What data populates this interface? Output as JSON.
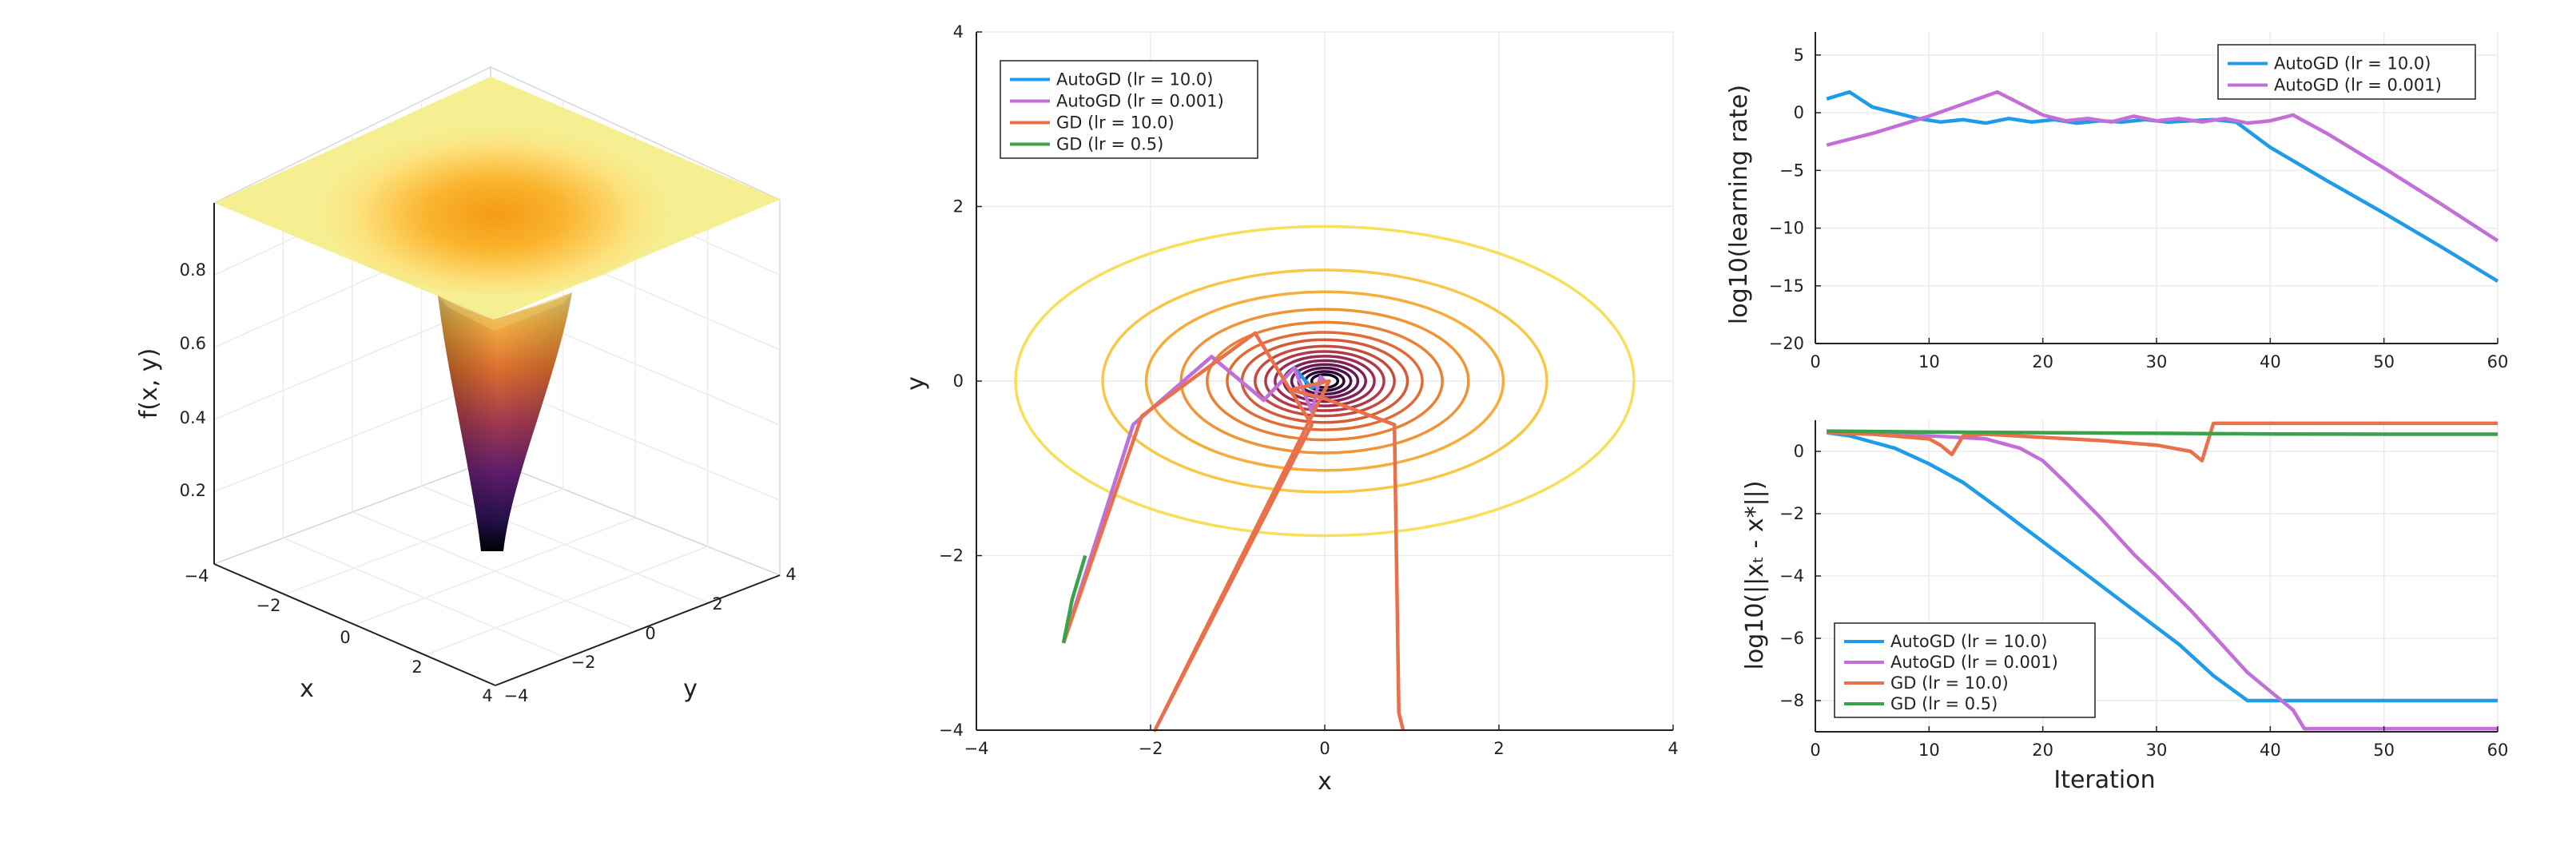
{
  "chart_data": [
    {
      "type": "surface",
      "xlabel": "x",
      "ylabel": "y",
      "zlabel": "f(x, y)",
      "x_ticks": [
        "−4",
        "−2",
        "0",
        "2",
        "4"
      ],
      "y_ticks": [
        "−4",
        "−2",
        "0",
        "2",
        "4"
      ],
      "z_ticks": [
        "0.2",
        "0.4",
        "0.6",
        "0.8"
      ],
      "xlim": [
        -4,
        4
      ],
      "ylim": [
        -4,
        4
      ],
      "zlim": [
        0,
        1
      ],
      "colormap": "inferno",
      "minimum": {
        "x": 0,
        "y": 0,
        "z": 0
      }
    },
    {
      "type": "line",
      "subtype": "contour with optimization trajectories",
      "xlabel": "x",
      "ylabel": "y",
      "xlim": [
        -4,
        4
      ],
      "ylim": [
        -4,
        4
      ],
      "x_ticks": [
        "−4",
        "−2",
        "0",
        "2",
        "4"
      ],
      "y_ticks": [
        "−4",
        "−2",
        "0",
        "2",
        "4"
      ],
      "grid": true,
      "legend_position": "top-left",
      "contour_centre": [
        0,
        0
      ],
      "contour_x_radii": [
        3.55,
        2.55,
        2.05,
        1.65,
        1.35,
        1.12,
        0.95,
        0.8,
        0.68,
        0.57,
        0.47,
        0.38,
        0.3,
        0.22,
        0.15
      ],
      "contour_aspect": 0.5,
      "series": [
        {
          "name": "AutoGD (lr = 10.0)",
          "color": "#1f9be8",
          "x": [
            -3.0,
            -2.2,
            -1.3,
            -0.7,
            -0.35,
            -0.15,
            0.0
          ],
          "y": [
            -3.0,
            -0.5,
            0.28,
            -0.22,
            0.15,
            -0.08,
            0.0
          ]
        },
        {
          "name": "AutoGD (lr = 0.001)",
          "color": "#c46fd8",
          "x": [
            -3.0,
            -2.2,
            -1.3,
            -0.7,
            -0.35,
            -0.15,
            -0.05,
            0.0
          ],
          "y": [
            -3.0,
            -0.5,
            0.28,
            -0.22,
            0.15,
            -0.35,
            0.05,
            0.0
          ]
        },
        {
          "name": "GD (lr = 10.0)",
          "color": "#e8714b",
          "x": [
            -3.0,
            -2.1,
            -0.8,
            -0.15,
            -1.95,
            0.05,
            -0.4,
            0.0,
            0.8,
            0.85,
            0.9
          ],
          "y": [
            -3.0,
            -0.4,
            0.55,
            -0.5,
            -4.0,
            0.0,
            -0.1,
            -0.2,
            -0.5,
            -3.8,
            -4.0
          ]
        },
        {
          "name": "GD (lr = 0.5)",
          "color": "#3aa24a",
          "x": [
            -3.0,
            -2.9,
            -2.75
          ],
          "y": [
            -3.0,
            -2.5,
            -2.0
          ]
        }
      ]
    },
    {
      "type": "line",
      "xlabel": "",
      "ylabel": "log10(learning rate)",
      "xlim": [
        0,
        60
      ],
      "ylim": [
        -20,
        7
      ],
      "x_ticks": [
        "0",
        "10",
        "20",
        "30",
        "40",
        "50",
        "60"
      ],
      "y_ticks": [
        "5",
        "0",
        "−5",
        "−10",
        "−15",
        "−20"
      ],
      "grid": true,
      "legend_position": "top-right",
      "series": [
        {
          "name": "AutoGD (lr = 10.0)",
          "color": "#1f9be8",
          "x": [
            1,
            3,
            5,
            7,
            9,
            11,
            13,
            15,
            17,
            19,
            21,
            23,
            25,
            27,
            29,
            31,
            33,
            35,
            37,
            40,
            45,
            50,
            55,
            60
          ],
          "y": [
            1.2,
            1.8,
            0.5,
            0.0,
            -0.5,
            -0.8,
            -0.6,
            -0.9,
            -0.5,
            -0.8,
            -0.6,
            -0.9,
            -0.7,
            -0.8,
            -0.6,
            -0.8,
            -0.7,
            -0.6,
            -0.8,
            -3.0,
            -5.9,
            -8.7,
            -11.6,
            -14.6
          ]
        },
        {
          "name": "AutoGD (lr = 0.001)",
          "color": "#c46fd8",
          "x": [
            1,
            5,
            10,
            16,
            18,
            20,
            22,
            24,
            26,
            28,
            30,
            32,
            34,
            36,
            38,
            40,
            42,
            45,
            50,
            55,
            60
          ],
          "y": [
            -2.8,
            -1.8,
            -0.3,
            1.8,
            0.8,
            -0.2,
            -0.7,
            -0.5,
            -0.8,
            -0.3,
            -0.7,
            -0.5,
            -0.8,
            -0.5,
            -0.9,
            -0.7,
            -0.2,
            -1.8,
            -4.8,
            -7.9,
            -11.1
          ]
        }
      ]
    },
    {
      "type": "line",
      "xlabel": "Iteration",
      "ylabel": "log10(||xₜ - x*||)",
      "xlim": [
        0,
        60
      ],
      "ylim": [
        -9,
        1
      ],
      "x_ticks": [
        "0",
        "10",
        "20",
        "30",
        "40",
        "50",
        "60"
      ],
      "y_ticks": [
        "0",
        "−2",
        "−4",
        "−6",
        "−8"
      ],
      "grid": true,
      "legend_position": "bottom-left",
      "series": [
        {
          "name": "AutoGD (lr = 10.0)",
          "color": "#1f9be8",
          "x": [
            1,
            3,
            5,
            7,
            10,
            13,
            16,
            20,
            24,
            28,
            32,
            35,
            38,
            40,
            45,
            50,
            55,
            60
          ],
          "y": [
            0.6,
            0.5,
            0.3,
            0.1,
            -0.4,
            -1.0,
            -1.8,
            -2.9,
            -4.0,
            -5.1,
            -6.2,
            -7.2,
            -8.0,
            -8.0,
            -8.0,
            -8.0,
            -8.0,
            -8.0
          ]
        },
        {
          "name": "AutoGD (lr = 0.001)",
          "color": "#c46fd8",
          "x": [
            1,
            5,
            10,
            15,
            18,
            20,
            22,
            25,
            28,
            30,
            33,
            36,
            38,
            40,
            42,
            43,
            45,
            50,
            55,
            60
          ],
          "y": [
            0.6,
            0.6,
            0.5,
            0.4,
            0.1,
            -0.3,
            -1.0,
            -2.1,
            -3.3,
            -4.0,
            -5.1,
            -6.3,
            -7.1,
            -7.7,
            -8.3,
            -8.9,
            -8.9,
            -8.9,
            -8.9,
            -8.9
          ]
        },
        {
          "name": "GD (lr = 10.0)",
          "color": "#e8714b",
          "x": [
            1,
            5,
            10,
            11,
            12,
            13,
            15,
            20,
            25,
            30,
            33,
            34,
            35,
            40,
            45,
            50,
            55,
            60
          ],
          "y": [
            0.6,
            0.55,
            0.4,
            0.2,
            -0.1,
            0.5,
            0.55,
            0.45,
            0.35,
            0.2,
            0.0,
            -0.3,
            0.9,
            0.9,
            0.9,
            0.9,
            0.9,
            0.9
          ]
        },
        {
          "name": "GD (lr = 0.5)",
          "color": "#3aa24a",
          "x": [
            1,
            10,
            20,
            30,
            40,
            50,
            60
          ],
          "y": [
            0.65,
            0.62,
            0.6,
            0.58,
            0.56,
            0.55,
            0.55
          ]
        }
      ]
    }
  ]
}
